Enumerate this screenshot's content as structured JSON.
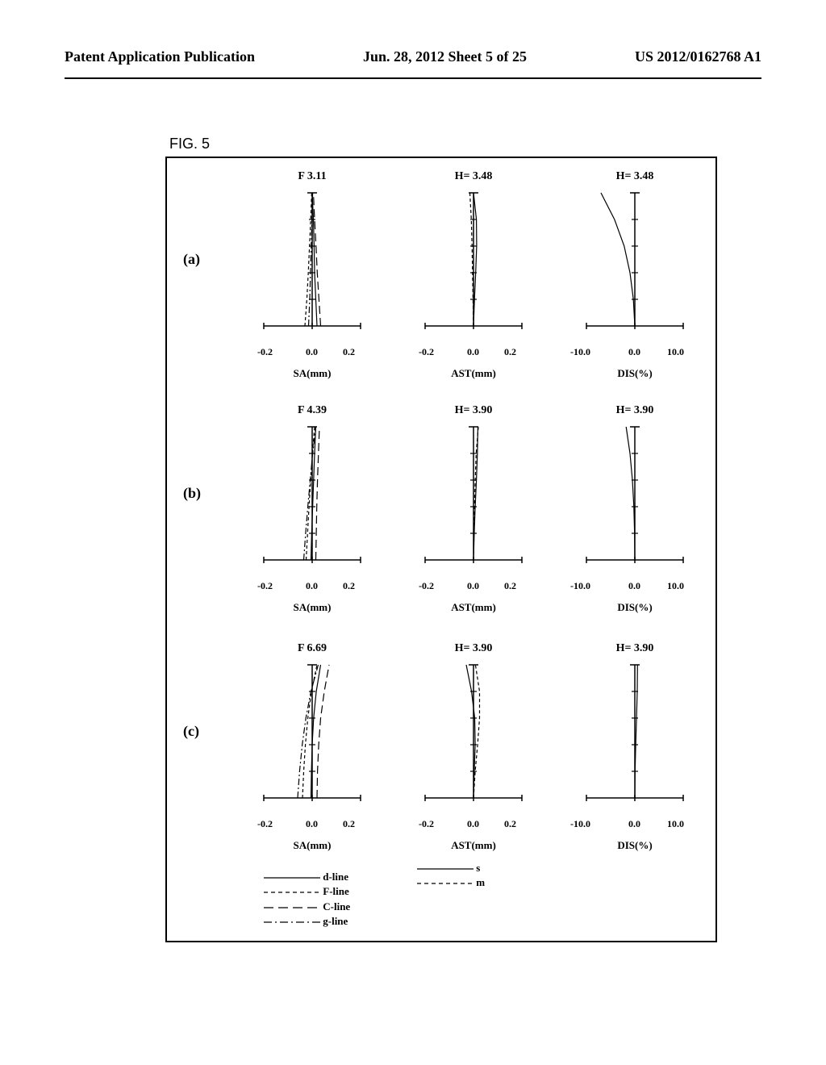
{
  "header": {
    "left": "Patent Application Publication",
    "center": "Jun. 28, 2012  Sheet 5 of 25",
    "right": "US 2012/0162768 A1"
  },
  "figure_label": "FIG. 5",
  "rows": [
    {
      "label": "(a)",
      "sa_title": "F 3.11",
      "ast_title": "H= 3.48",
      "dis_title": "H= 3.48"
    },
    {
      "label": "(b)",
      "sa_title": "F 4.39",
      "ast_title": "H= 3.90",
      "dis_title": "H= 3.90"
    },
    {
      "label": "(c)",
      "sa_title": "F 6.69",
      "ast_title": "H= 3.90",
      "dis_title": "H= 3.90"
    }
  ],
  "sa_chart": {
    "type": "aberration-plot",
    "axis_label": "SA(mm)",
    "xticks": [
      "-0.2",
      "0.0",
      "0.2"
    ],
    "xlim": [
      -0.2,
      0.2
    ],
    "y_range": [
      0,
      1
    ],
    "colors": {
      "dline": "#000000",
      "fline": "#000000",
      "cline": "#000000",
      "gline": "#000000"
    },
    "line_styles": {
      "dline": "solid",
      "fline": "short-dash",
      "cline": "long-dash",
      "gline": "dash-dot"
    },
    "data": {
      "a": {
        "dline": [
          [
            0.02,
            0
          ],
          [
            0.015,
            0.2
          ],
          [
            0.01,
            0.4
          ],
          [
            0.008,
            0.6
          ],
          [
            0.005,
            0.8
          ],
          [
            0.0,
            1.0
          ]
        ],
        "fline": [
          [
            -0.03,
            0
          ],
          [
            -0.022,
            0.2
          ],
          [
            -0.016,
            0.4
          ],
          [
            -0.011,
            0.6
          ],
          [
            -0.006,
            0.8
          ],
          [
            -0.002,
            1.0
          ]
        ],
        "cline": [
          [
            0.035,
            0
          ],
          [
            0.028,
            0.2
          ],
          [
            0.021,
            0.4
          ],
          [
            0.016,
            0.6
          ],
          [
            0.01,
            0.8
          ],
          [
            0.005,
            1.0
          ]
        ],
        "gline": [
          [
            -0.015,
            0
          ],
          [
            -0.01,
            0.2
          ],
          [
            -0.007,
            0.4
          ],
          [
            -0.004,
            0.6
          ],
          [
            -0.001,
            0.8
          ],
          [
            0.002,
            1.0
          ]
        ]
      },
      "b": {
        "dline": [
          [
            -0.005,
            0
          ],
          [
            -0.002,
            0.2
          ],
          [
            0.002,
            0.4
          ],
          [
            0.006,
            0.6
          ],
          [
            0.01,
            0.8
          ],
          [
            0.015,
            1.0
          ]
        ],
        "fline": [
          [
            -0.025,
            0
          ],
          [
            -0.019,
            0.2
          ],
          [
            -0.013,
            0.4
          ],
          [
            -0.006,
            0.6
          ],
          [
            0.001,
            0.8
          ],
          [
            0.01,
            1.0
          ]
        ],
        "cline": [
          [
            0.015,
            0
          ],
          [
            0.017,
            0.2
          ],
          [
            0.019,
            0.4
          ],
          [
            0.022,
            0.6
          ],
          [
            0.026,
            0.8
          ],
          [
            0.03,
            1.0
          ]
        ],
        "gline": [
          [
            -0.035,
            0
          ],
          [
            -0.027,
            0.2
          ],
          [
            -0.018,
            0.4
          ],
          [
            -0.008,
            0.6
          ],
          [
            0.002,
            0.8
          ],
          [
            0.015,
            1.0
          ]
        ]
      },
      "c": {
        "dline": [
          [
            -0.005,
            0
          ],
          [
            -0.003,
            0.2
          ],
          [
            0.0,
            0.4
          ],
          [
            0.006,
            0.6
          ],
          [
            0.017,
            0.8
          ],
          [
            0.035,
            1.0
          ]
        ],
        "fline": [
          [
            -0.04,
            0
          ],
          [
            -0.035,
            0.2
          ],
          [
            -0.028,
            0.4
          ],
          [
            -0.018,
            0.6
          ],
          [
            -0.003,
            0.8
          ],
          [
            0.02,
            1.0
          ]
        ],
        "cline": [
          [
            0.02,
            0
          ],
          [
            0.022,
            0.2
          ],
          [
            0.027,
            0.4
          ],
          [
            0.035,
            0.6
          ],
          [
            0.05,
            0.8
          ],
          [
            0.07,
            1.0
          ]
        ],
        "gline": [
          [
            -0.06,
            0
          ],
          [
            -0.052,
            0.2
          ],
          [
            -0.041,
            0.4
          ],
          [
            -0.026,
            0.6
          ],
          [
            -0.005,
            0.8
          ],
          [
            0.025,
            1.0
          ]
        ]
      }
    }
  },
  "ast_chart": {
    "type": "aberration-plot",
    "axis_label": "AST(mm)",
    "xticks": [
      "-0.2",
      "0.0",
      "0.2"
    ],
    "xlim": [
      -0.2,
      0.2
    ],
    "line_styles": {
      "s": "solid",
      "m": "short-dash"
    },
    "data": {
      "a": {
        "s": [
          [
            0.0,
            0
          ],
          [
            0.004,
            0.2
          ],
          [
            0.009,
            0.4
          ],
          [
            0.013,
            0.6
          ],
          [
            0.012,
            0.8
          ],
          [
            0.0,
            1.0
          ]
        ],
        "m": [
          [
            0.0,
            0
          ],
          [
            -0.002,
            0.2
          ],
          [
            -0.004,
            0.4
          ],
          [
            -0.006,
            0.6
          ],
          [
            -0.009,
            0.8
          ],
          [
            -0.015,
            1.0
          ]
        ]
      },
      "b": {
        "s": [
          [
            0.0,
            0
          ],
          [
            0.003,
            0.2
          ],
          [
            0.007,
            0.4
          ],
          [
            0.012,
            0.6
          ],
          [
            0.016,
            0.8
          ],
          [
            0.018,
            1.0
          ]
        ],
        "m": [
          [
            0.0,
            0
          ],
          [
            0.002,
            0.2
          ],
          [
            0.004,
            0.4
          ],
          [
            0.007,
            0.6
          ],
          [
            0.011,
            0.8
          ],
          [
            0.02,
            1.0
          ]
        ]
      },
      "c": {
        "s": [
          [
            0.0,
            0
          ],
          [
            0.003,
            0.2
          ],
          [
            0.007,
            0.4
          ],
          [
            0.005,
            0.6
          ],
          [
            -0.008,
            0.8
          ],
          [
            -0.03,
            1.0
          ]
        ],
        "m": [
          [
            0.0,
            0
          ],
          [
            0.007,
            0.2
          ],
          [
            0.017,
            0.4
          ],
          [
            0.025,
            0.6
          ],
          [
            0.025,
            0.8
          ],
          [
            0.008,
            1.0
          ]
        ]
      }
    }
  },
  "dis_chart": {
    "type": "aberration-plot",
    "axis_label": "DIS(%)",
    "xticks": [
      "-10.0",
      "0.0",
      "10.0"
    ],
    "xlim": [
      -10,
      10
    ],
    "line_styles": {
      "d": "solid"
    },
    "data": {
      "a": {
        "d": [
          [
            0,
            0
          ],
          [
            -0.3,
            0.2
          ],
          [
            -1.0,
            0.4
          ],
          [
            -2.2,
            0.6
          ],
          [
            -4.2,
            0.8
          ],
          [
            -7.0,
            1.0
          ]
        ]
      },
      "b": {
        "d": [
          [
            0,
            0
          ],
          [
            -0.05,
            0.2
          ],
          [
            -0.2,
            0.4
          ],
          [
            -0.5,
            0.6
          ],
          [
            -1.0,
            0.8
          ],
          [
            -1.8,
            1.0
          ]
        ]
      },
      "c": {
        "d": [
          [
            0,
            0
          ],
          [
            0.05,
            0.2
          ],
          [
            0.18,
            0.4
          ],
          [
            0.35,
            0.6
          ],
          [
            0.5,
            0.8
          ],
          [
            0.55,
            1.0
          ]
        ]
      }
    }
  },
  "legend_sa": [
    {
      "label": "d-line",
      "style": "solid"
    },
    {
      "label": "F-line",
      "style": "short-dash"
    },
    {
      "label": "C-line",
      "style": "long-dash"
    },
    {
      "label": "g-line",
      "style": "dash-dot"
    }
  ],
  "legend_ast": [
    {
      "label": "s",
      "style": "solid"
    },
    {
      "label": "m",
      "style": "short-dash"
    }
  ],
  "styling": {
    "background_color": "#ffffff",
    "axis_color": "#000000",
    "line_width": 1.2,
    "title_fontsize": 14,
    "axis_label_fontsize": 13,
    "tick_fontsize": 12
  }
}
